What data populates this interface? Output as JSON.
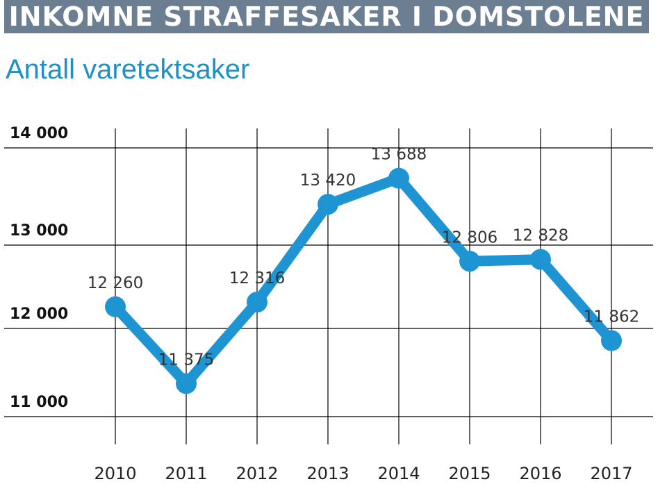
{
  "title": "INKOMNE STRAFFESAKER I DOMSTOLENE",
  "subtitle": "Antall varetektsaker",
  "colors": {
    "banner": "#6c7f92",
    "subtitle": "#1f8fc8",
    "line": "#1f94d2",
    "grid": "#000000"
  },
  "chart_data": {
    "type": "line",
    "categories": [
      "2010",
      "2011",
      "2012",
      "2013",
      "2014",
      "2015",
      "2016",
      "2017"
    ],
    "series": [
      {
        "values": [
          12260,
          11375,
          12316,
          13420,
          13688,
          12806,
          12828,
          11862
        ]
      }
    ],
    "data_labels": [
      "12 260",
      "11 375",
      "12 316",
      "13 420",
      "13 688",
      "12 806",
      "12 828",
      "11 862"
    ],
    "y_ticks": [
      11000,
      12000,
      13000,
      14000
    ],
    "y_tick_labels": [
      "11 000",
      "12 000",
      "13 000",
      "14 000"
    ],
    "grid": true
  }
}
